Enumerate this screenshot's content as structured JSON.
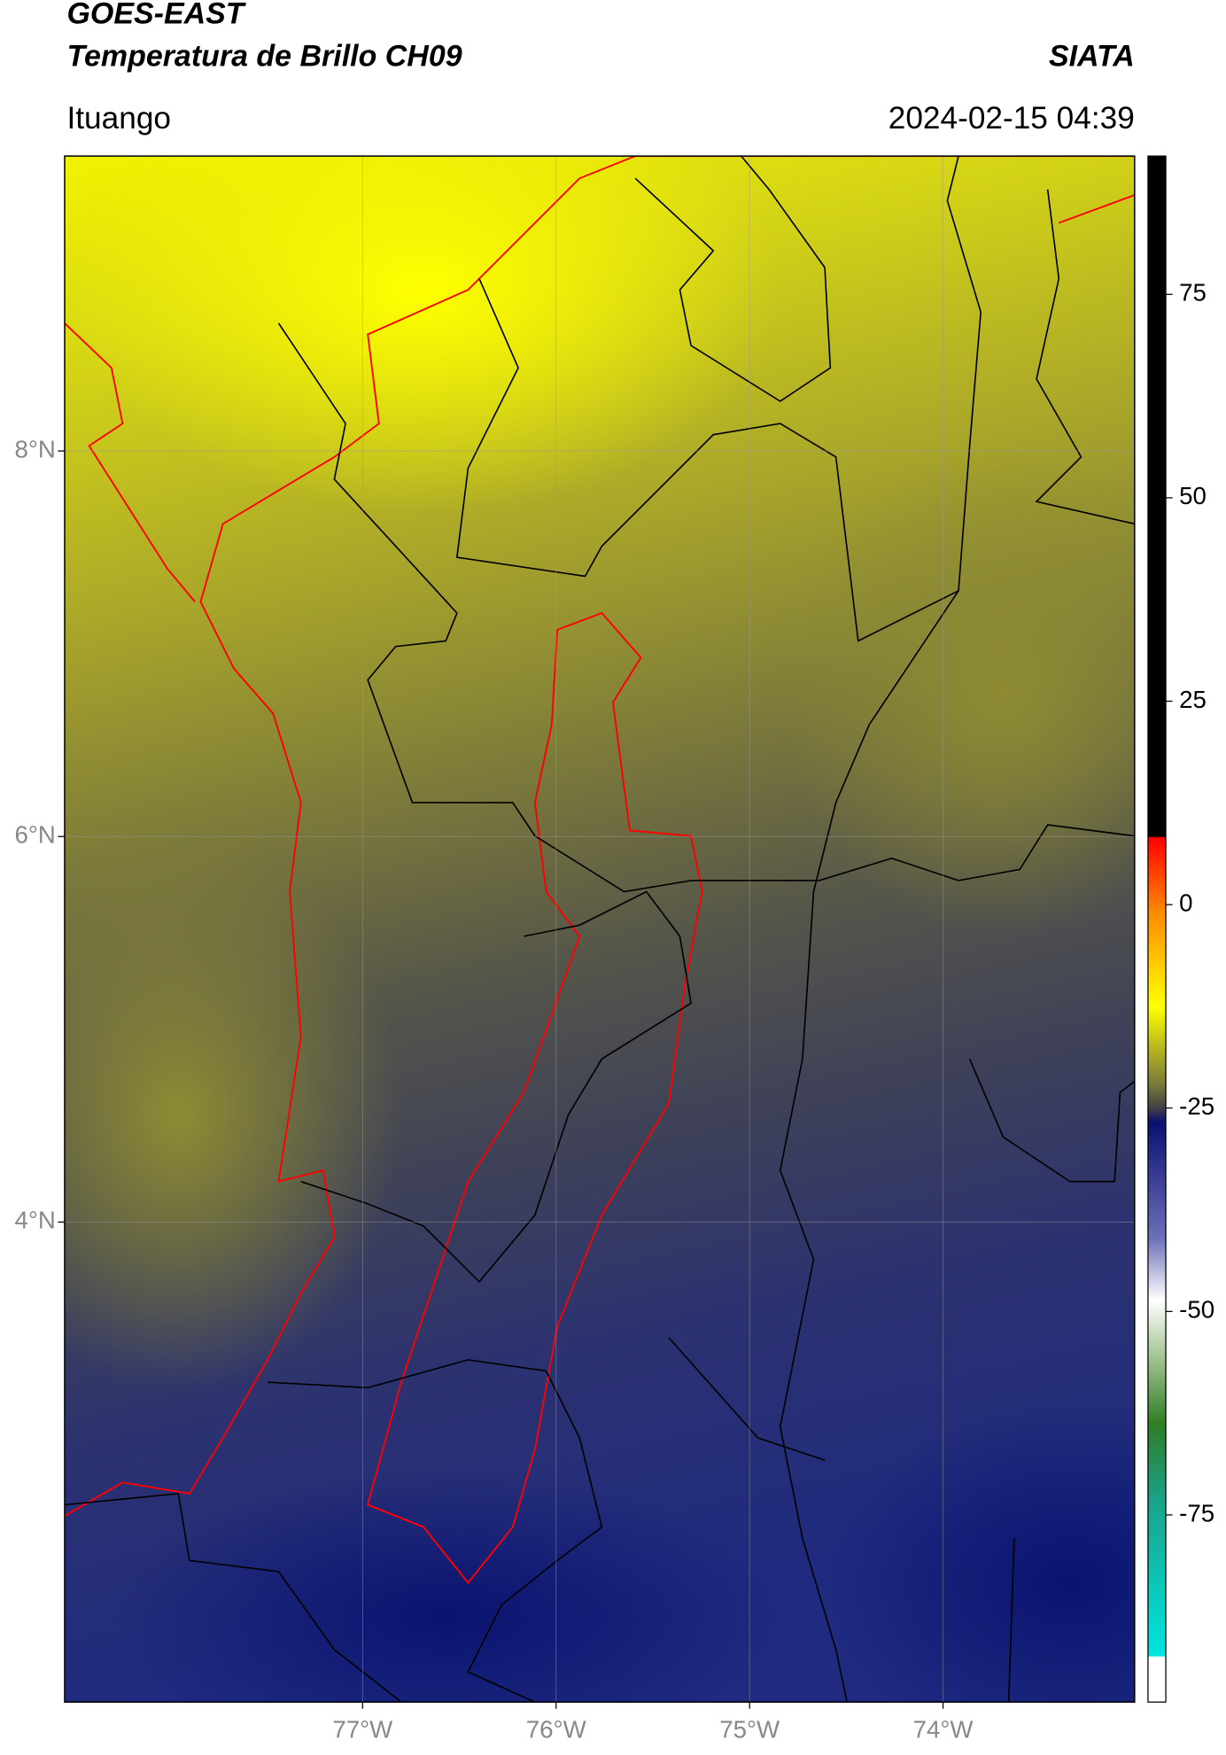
{
  "map": {
    "satellite": "GOES-EAST",
    "title": "Temperatura de Brillo CH09",
    "source": "SIATA",
    "location": "Ituango",
    "timestamp": "2024-02-15 04:39",
    "xlim": [
      -78.54,
      -73.01
    ],
    "ylim": [
      1.51,
      9.53
    ],
    "xticks": [
      {
        "value": -77,
        "label": "77°W"
      },
      {
        "value": -76,
        "label": "76°W"
      },
      {
        "value": -75,
        "label": "75°W"
      },
      {
        "value": -74,
        "label": "74°W"
      }
    ],
    "yticks": [
      {
        "value": 8,
        "label": "8°N"
      },
      {
        "value": 6,
        "label": "6°N"
      },
      {
        "value": 4,
        "label": "4°N"
      }
    ],
    "grid": true,
    "colorbar": {
      "lim": [
        -98,
        92
      ],
      "ticks": [
        75,
        50,
        25,
        0,
        -25,
        -50,
        -75
      ]
    }
  }
}
